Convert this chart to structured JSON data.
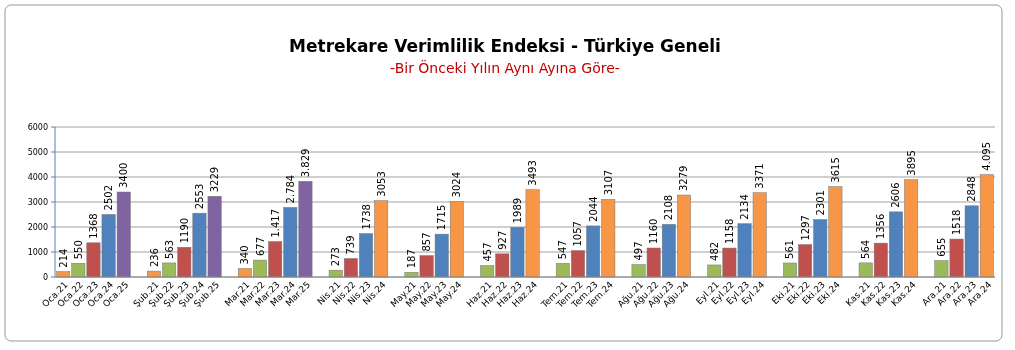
{
  "chart_data": {
    "type": "bar",
    "title": "Metrekare Verimlilik Endeksi - Türkiye Geneli",
    "subtitle": "-Bir Önceki Yılın Aynı Ayına Göre-",
    "categories": [
      "Oca.21",
      "Oca.22",
      "Oca.23",
      "Oca.24",
      "Oca.25",
      null,
      "Şub.21",
      "Şub.22",
      "Şub.23",
      "Şub.24",
      "Şub.25",
      null,
      "Mar.21",
      "Mar.22",
      "Mar.23",
      "Mar.24",
      "Mar.25",
      null,
      "Nis.21",
      "Nis.22",
      "Nis.23",
      "Nis.24",
      null,
      "May.21",
      "May.22",
      "May.23",
      "May.24",
      null,
      "Haz.21",
      "Haz.22",
      "Haz.23",
      "Haz.24",
      null,
      "Tem.21",
      "Tem.22",
      "Tem.23",
      "Tem.24",
      null,
      "Ağu.21",
      "Ağu.22",
      "Ağu.23",
      "Ağu.24",
      null,
      "Eyl.21",
      "Eyl.22",
      "Eyl.23",
      "Eyl.24",
      null,
      "Eki.21",
      "Eki.22",
      "Eki.23",
      "Eki.24",
      null,
      "Kas.21",
      "Kas.22",
      "Kas.23",
      "Kas.24",
      null,
      "Ara.21",
      "Ara.22",
      "Ara.23",
      "Ara.24"
    ],
    "values": [
      214,
      550,
      1368,
      2502,
      3400,
      null,
      236,
      563,
      1190,
      2553,
      3229,
      null,
      340,
      677,
      1417,
      2784,
      3829,
      null,
      273,
      739,
      1738,
      3053,
      null,
      187,
      857,
      1715,
      3024,
      null,
      457,
      927,
      1989,
      3493,
      null,
      547,
      1057,
      2044,
      3107,
      null,
      497,
      1160,
      2108,
      3279,
      null,
      482,
      1158,
      2134,
      3371,
      null,
      561,
      1297,
      2301,
      3615,
      null,
      564,
      1356,
      2606,
      3895,
      null,
      655,
      1518,
      2848,
      4095
    ],
    "value_labels": [
      "214",
      "550",
      "1368",
      "2502",
      "3400",
      null,
      "236",
      "563",
      "1190",
      "2553",
      "3229",
      null,
      "340",
      "677",
      "1.417",
      "2.784",
      "3.829",
      null,
      "273",
      "739",
      "1738",
      "3053",
      null,
      "187",
      "857",
      "1715",
      "3024",
      null,
      "457",
      "927",
      "1989",
      "3493",
      null,
      "547",
      "1057",
      "2044",
      "3107",
      null,
      "497",
      "1160",
      "2108",
      "3279",
      null,
      "482",
      "1158",
      "2134",
      "3371",
      null,
      "561",
      "1297",
      "2301",
      "3615",
      null,
      "564",
      "1356",
      "2606",
      "3895",
      null,
      "655",
      "1518",
      "2848",
      "4.095"
    ],
    "colors": [
      "#f79646",
      "#9bbb59",
      "#c0504d",
      "#4f81bd",
      "#8064a2",
      null,
      "#f79646",
      "#9bbb59",
      "#c0504d",
      "#4f81bd",
      "#8064a2",
      null,
      "#f79646",
      "#9bbb59",
      "#c0504d",
      "#4f81bd",
      "#8064a2",
      null,
      "#9bbb59",
      "#c0504d",
      "#4f81bd",
      "#f79646",
      null,
      "#9bbb59",
      "#c0504d",
      "#4f81bd",
      "#f79646",
      null,
      "#9bbb59",
      "#c0504d",
      "#4f81bd",
      "#f79646",
      null,
      "#9bbb59",
      "#c0504d",
      "#4f81bd",
      "#f79646",
      null,
      "#9bbb59",
      "#c0504d",
      "#4f81bd",
      "#f79646",
      null,
      "#9bbb59",
      "#c0504d",
      "#4f81bd",
      "#f79646",
      null,
      "#9bbb59",
      "#c0504d",
      "#4f81bd",
      "#f79646",
      null,
      "#9bbb59",
      "#c0504d",
      "#4f81bd",
      "#f79646",
      null,
      "#9bbb59",
      "#c0504d",
      "#4f81bd",
      "#f79646"
    ],
    "ylim": [
      0,
      6000
    ],
    "yticks": [
      0,
      1000,
      2000,
      3000,
      4000,
      5000,
      6000
    ],
    "grid": "y"
  }
}
